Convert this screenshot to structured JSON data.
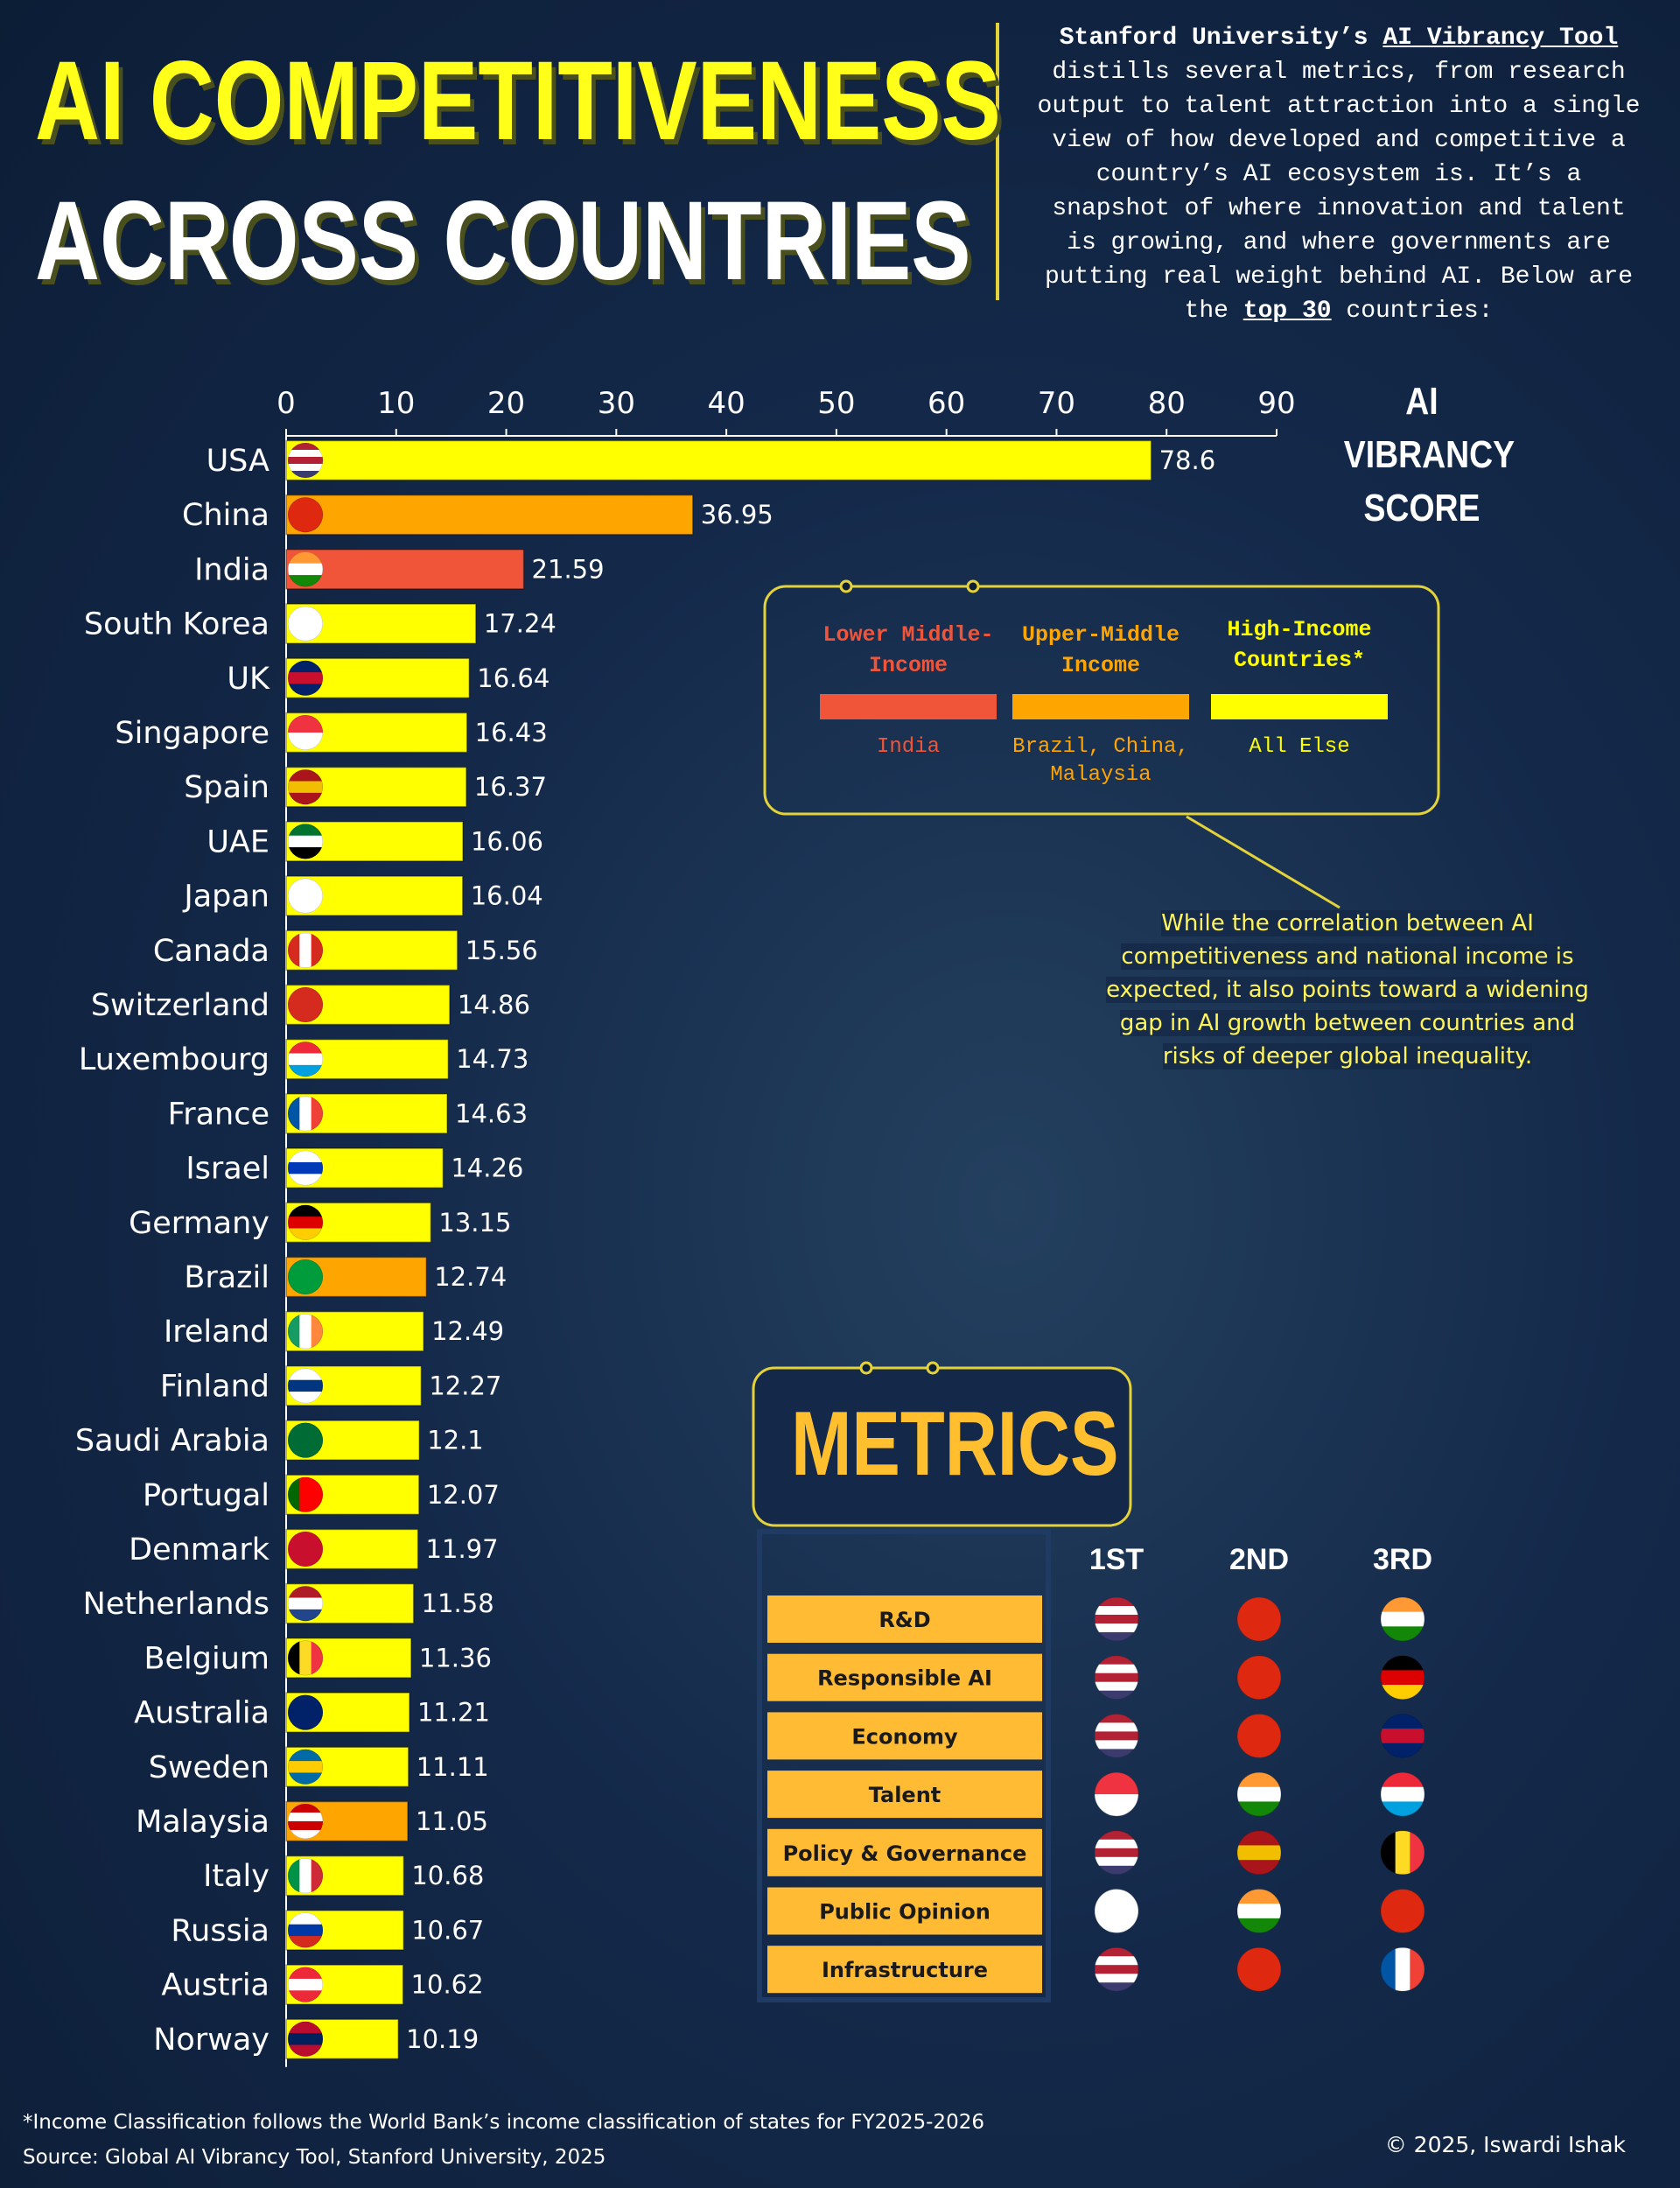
{
  "chart_data": {
    "type": "bar",
    "orientation": "horizontal",
    "title_lines": [
      "AI COMPETITIVENESS",
      "ACROSS COUNTRIES"
    ],
    "description": [
      "Stanford University’s ",
      "AI Vibrancy Tool",
      " distills several metrics, from research output to talent attraction into a single view of how developed and competitive a country’s AI ecosystem is. It’s a snapshot of where innovation and talent is growing, and where governments are putting real weight behind AI. Below are the ",
      "top 30",
      " countries:"
    ],
    "x_label": "AI VIBRANCY SCORE",
    "categories": [
      "USA",
      "China",
      "India",
      "South Korea",
      "UK",
      "Singapore",
      "Spain",
      "UAE",
      "Japan",
      "Canada",
      "Switzerland",
      "Luxembourg",
      "France",
      "Israel",
      "Germany",
      "Brazil",
      "Ireland",
      "Finland",
      "Saudi Arabia",
      "Portugal",
      "Denmark",
      "Netherlands",
      "Belgium",
      "Australia",
      "Sweden",
      "Malaysia",
      "Italy",
      "Russia",
      "Austria",
      "Norway"
    ],
    "values": [
      78.6,
      36.95,
      21.59,
      17.24,
      16.64,
      16.43,
      16.37,
      16.06,
      16.04,
      15.56,
      14.86,
      14.73,
      14.63,
      14.26,
      13.15,
      12.74,
      12.49,
      12.27,
      12.1,
      12.07,
      11.97,
      11.58,
      11.36,
      11.21,
      11.11,
      11.05,
      10.68,
      10.67,
      10.62,
      10.19
    ],
    "colors": [
      "#ffff00",
      "#ffa500",
      "#f0553a",
      "#ffff00",
      "#ffff00",
      "#ffff00",
      "#ffff00",
      "#ffff00",
      "#ffff00",
      "#ffff00",
      "#ffff00",
      "#ffff00",
      "#ffff00",
      "#ffff00",
      "#ffff00",
      "#ffa500",
      "#ffff00",
      "#ffff00",
      "#ffff00",
      "#ffff00",
      "#ffff00",
      "#ffff00",
      "#ffff00",
      "#ffff00",
      "#ffff00",
      "#ffa500",
      "#ffff00",
      "#ffff00",
      "#ffff00",
      "#ffff00"
    ],
    "xlim": [
      0,
      90
    ],
    "xticks": [
      0,
      10,
      20,
      30,
      40,
      50,
      60,
      70,
      80,
      90
    ],
    "income_groups": [
      {
        "name": "Lower Middle-Income",
        "color": "#f0553a",
        "countries": "India"
      },
      {
        "name": "Upper-Middle Income",
        "color": "#ffa500",
        "countries": "Brazil, China, Malaysia"
      },
      {
        "name": "High-Income Countries*",
        "color": "#ffff00",
        "countries": "All Else"
      }
    ],
    "annotation": "While the correlation between AI competitiveness and national income is expected, it also points toward a widening gap in AI growth between countries and risks of deeper global inequality.",
    "metrics": {
      "title": "METRICS",
      "rank_headers": [
        "1ST",
        "2ND",
        "3RD"
      ],
      "rows": [
        "R&D",
        "Responsible AI",
        "Economy",
        "Talent",
        "Policy & Governance",
        "Public Opinion",
        "Infrastructure"
      ]
    },
    "footnote": "*Income Classification follows the World Bank’s income classification of states for FY2025-2026",
    "source": "Source: Global AI Vibrancy Tool, Stanford University, 2025",
    "credit": "© 2025, Iswardi Ishak"
  }
}
